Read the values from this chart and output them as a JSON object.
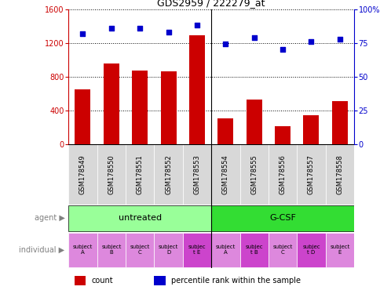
{
  "title": "GDS2959 / 222279_at",
  "samples": [
    "GSM178549",
    "GSM178550",
    "GSM178551",
    "GSM178552",
    "GSM178553",
    "GSM178554",
    "GSM178555",
    "GSM178556",
    "GSM178557",
    "GSM178558"
  ],
  "counts": [
    650,
    960,
    870,
    860,
    1290,
    310,
    530,
    220,
    350,
    510
  ],
  "percentile_ranks": [
    82,
    86,
    86,
    83,
    88,
    74,
    79,
    70,
    76,
    78
  ],
  "ylim_left": [
    0,
    1600
  ],
  "ylim_right": [
    0,
    100
  ],
  "yticks_left": [
    0,
    400,
    800,
    1200,
    1600
  ],
  "yticks_right": [
    0,
    25,
    50,
    75,
    100
  ],
  "bar_color": "#cc0000",
  "dot_color": "#0000cc",
  "groups": [
    {
      "label": "untreated",
      "start": 0,
      "end": 5,
      "color": "#99ff99"
    },
    {
      "label": "G-CSF",
      "start": 5,
      "end": 10,
      "color": "#33dd33"
    }
  ],
  "individuals": [
    {
      "label": "subject\nA",
      "idx": 0,
      "highlight": false
    },
    {
      "label": "subject\nB",
      "idx": 1,
      "highlight": false
    },
    {
      "label": "subject\nC",
      "idx": 2,
      "highlight": false
    },
    {
      "label": "subject\nD",
      "idx": 3,
      "highlight": false
    },
    {
      "label": "subjec\nt E",
      "idx": 4,
      "highlight": true
    },
    {
      "label": "subject\nA",
      "idx": 5,
      "highlight": false
    },
    {
      "label": "subjec\nt B",
      "idx": 6,
      "highlight": true
    },
    {
      "label": "subject\nC",
      "idx": 7,
      "highlight": false
    },
    {
      "label": "subjec\nt D",
      "idx": 8,
      "highlight": true
    },
    {
      "label": "subject\nE",
      "idx": 9,
      "highlight": false
    }
  ],
  "individual_colors": [
    "#dd88dd",
    "#dd88dd",
    "#dd88dd",
    "#dd88dd",
    "#cc44cc",
    "#dd88dd",
    "#cc44cc",
    "#dd88dd",
    "#cc44cc",
    "#dd88dd"
  ],
  "bg_color": "#ffffff",
  "plot_bg": "#ffffff",
  "sample_bg": "#d8d8d8",
  "legend_count_color": "#cc0000",
  "legend_dot_color": "#0000cc",
  "agent_label": "agent",
  "individual_label": "individual",
  "sep_idx": 5
}
